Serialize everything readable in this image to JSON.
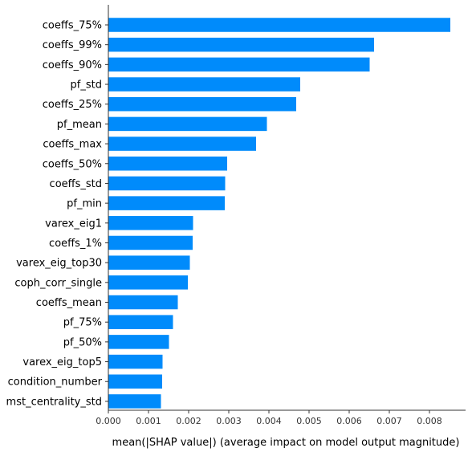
{
  "chart_data": {
    "type": "bar",
    "orientation": "horizontal",
    "title": "",
    "xlabel": "mean(|SHAP value|) (average impact on model output magnitude)",
    "ylabel": "",
    "xlim": [
      0,
      0.0089
    ],
    "x_ticks": [
      0.0,
      0.001,
      0.002,
      0.003,
      0.004,
      0.005,
      0.006,
      0.007,
      0.008
    ],
    "x_tick_labels": [
      "0.000",
      "0.001",
      "0.002",
      "0.003",
      "0.004",
      "0.005",
      "0.006",
      "0.007",
      "0.008"
    ],
    "grid": false,
    "bar_color": "#008bfb",
    "categories": [
      "coeffs_75%",
      "coeffs_99%",
      "coeffs_90%",
      "pf_std",
      "coeffs_25%",
      "pf_mean",
      "coeffs_max",
      "coeffs_50%",
      "coeffs_std",
      "pf_min",
      "varex_eig1",
      "coeffs_1%",
      "varex_eig_top30",
      "coph_corr_single",
      "coeffs_mean",
      "pf_75%",
      "pf_50%",
      "varex_eig_top5",
      "condition_number",
      "mst_centrality_std"
    ],
    "values": [
      0.00852,
      0.00662,
      0.00651,
      0.00478,
      0.00468,
      0.00395,
      0.00368,
      0.00296,
      0.00291,
      0.0029,
      0.00211,
      0.0021,
      0.00203,
      0.00198,
      0.00173,
      0.00161,
      0.00151,
      0.00135,
      0.00134,
      0.00131
    ]
  }
}
